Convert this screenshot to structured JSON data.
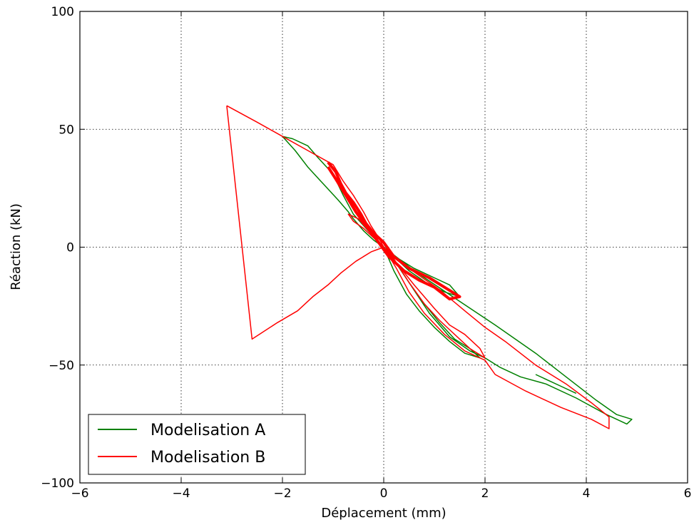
{
  "chart_data": {
    "type": "line",
    "xlabel": "Déplacement (mm)",
    "ylabel": "Réaction (kN)",
    "xlim": [
      -6,
      6
    ],
    "ylim": [
      -100,
      100
    ],
    "x_ticks": [
      -6,
      -4,
      -2,
      0,
      2,
      4,
      6
    ],
    "x_tick_labels": [
      "−6",
      "−4",
      "−2",
      "0",
      "2",
      "4",
      "6"
    ],
    "y_ticks": [
      -100,
      -50,
      0,
      50,
      100
    ],
    "y_tick_labels": [
      "−100",
      "−50",
      "0",
      "50",
      "100"
    ],
    "grid": true,
    "legend_position": "lower-left",
    "series": [
      {
        "name": "Modelisation A",
        "color": "#008000",
        "segments": [
          [
            [
              0,
              0
            ],
            [
              -0.2,
              3
            ],
            [
              -0.4,
              7
            ],
            [
              -0.6,
              12
            ],
            [
              -0.7,
              15
            ],
            [
              -0.9,
              20
            ],
            [
              -1.2,
              27
            ],
            [
              -1.5,
              34
            ],
            [
              -1.75,
              41
            ],
            [
              -2.0,
              47
            ],
            [
              -1.8,
              46
            ],
            [
              -1.5,
              43
            ],
            [
              -1.3,
              38
            ],
            [
              -1.0,
              31
            ],
            [
              -0.8,
              22
            ],
            [
              -0.6,
              14
            ],
            [
              -0.35,
              8
            ],
            [
              -0.1,
              2
            ],
            [
              0,
              0
            ],
            [
              0.3,
              -5
            ],
            [
              0.6,
              -9
            ],
            [
              1.0,
              -13
            ],
            [
              1.3,
              -16
            ],
            [
              1.5,
              -21
            ],
            [
              1.2,
              -19
            ],
            [
              0.9,
              -16
            ],
            [
              0.5,
              -10
            ],
            [
              0.2,
              -4
            ],
            [
              0,
              0
            ],
            [
              0.25,
              -7
            ],
            [
              0.5,
              -15
            ],
            [
              0.8,
              -24
            ],
            [
              1.1,
              -32
            ],
            [
              1.4,
              -39
            ],
            [
              1.7,
              -43
            ],
            [
              1.9,
              -47
            ],
            [
              1.6,
              -45
            ],
            [
              1.3,
              -40
            ],
            [
              1.0,
              -34
            ],
            [
              0.7,
              -27
            ],
            [
              0.45,
              -20
            ],
            [
              0.2,
              -10
            ],
            [
              0,
              0
            ],
            [
              0.6,
              -10
            ],
            [
              1.5,
              -23
            ],
            [
              2.2,
              -33
            ],
            [
              3.0,
              -45
            ],
            [
              3.6,
              -55
            ],
            [
              4.2,
              -65
            ],
            [
              4.6,
              -71
            ],
            [
              4.9,
              -73
            ],
            [
              4.8,
              -75
            ],
            [
              4.4,
              -71
            ],
            [
              3.8,
              -64
            ],
            [
              3.2,
              -58
            ],
            [
              2.7,
              -55
            ],
            [
              2.3,
              -51
            ],
            [
              2.0,
              -47
            ],
            [
              1.7,
              -44
            ],
            [
              1.3,
              -38
            ],
            [
              0.9,
              -28
            ],
            [
              0.5,
              -15
            ],
            [
              0.2,
              -5
            ],
            [
              0,
              0
            ]
          ],
          [
            [
              3.0,
              -54
            ],
            [
              3.5,
              -59
            ],
            [
              3.8,
              -62
            ]
          ]
        ]
      },
      {
        "name": "Modelisation B",
        "color": "#ff0000",
        "segments": [
          [
            [
              -3.1,
              60
            ],
            [
              -2.5,
              53
            ],
            [
              -2.0,
              47
            ],
            [
              -1.5,
              41
            ],
            [
              -1.0,
              35
            ],
            [
              -0.8,
              28
            ],
            [
              -0.6,
              22
            ],
            [
              -0.4,
              15
            ],
            [
              -0.25,
              9
            ],
            [
              -0.1,
              4
            ],
            [
              0,
              0
            ],
            [
              -0.2,
              4
            ],
            [
              -0.4,
              8
            ],
            [
              -0.6,
              11
            ],
            [
              -0.7,
              14
            ],
            [
              -0.5,
              12
            ],
            [
              -0.3,
              7
            ],
            [
              0,
              0
            ],
            [
              0.3,
              -6
            ],
            [
              0.7,
              -12
            ],
            [
              1.1,
              -18
            ],
            [
              1.6,
              -27
            ],
            [
              2.0,
              -34
            ],
            [
              2.4,
              -40
            ],
            [
              3.0,
              -50
            ],
            [
              3.6,
              -58
            ],
            [
              4.1,
              -66
            ],
            [
              4.45,
              -72
            ],
            [
              4.45,
              -77
            ],
            [
              4.1,
              -73
            ],
            [
              3.5,
              -68
            ],
            [
              2.8,
              -61
            ],
            [
              2.2,
              -54
            ],
            [
              2.0,
              -48
            ],
            [
              1.6,
              -44
            ],
            [
              1.2,
              -37
            ],
            [
              0.8,
              -28
            ],
            [
              0.5,
              -19
            ],
            [
              0.25,
              -9
            ],
            [
              0,
              0
            ],
            [
              0.3,
              -8
            ],
            [
              0.6,
              -16
            ],
            [
              1.0,
              -26
            ],
            [
              1.3,
              -33
            ],
            [
              1.6,
              -37
            ],
            [
              1.9,
              -43
            ],
            [
              2.0,
              -47
            ],
            [
              1.7,
              -43
            ],
            [
              1.4,
              -37
            ],
            [
              1.1,
              -31
            ],
            [
              0.8,
              -24
            ],
            [
              0.5,
              -15
            ],
            [
              0.2,
              -5
            ],
            [
              0,
              0
            ],
            [
              -0.25,
              -2
            ],
            [
              -0.55,
              -6
            ],
            [
              -0.85,
              -11
            ],
            [
              -1.1,
              -16
            ],
            [
              -1.4,
              -21
            ],
            [
              -1.7,
              -27
            ],
            [
              -2.1,
              -32
            ],
            [
              -2.6,
              -39
            ],
            [
              -3.1,
              60
            ]
          ]
        ],
        "dense_segment": [
          [
            -1.1,
            36
          ],
          [
            -0.95,
            32
          ],
          [
            -0.85,
            27
          ],
          [
            -0.75,
            23
          ],
          [
            -0.6,
            19
          ],
          [
            -0.45,
            14
          ],
          [
            -0.35,
            10
          ],
          [
            -0.2,
            6
          ],
          [
            0,
            2
          ],
          [
            0.2,
            -4
          ],
          [
            0.5,
            -9
          ],
          [
            0.9,
            -13
          ],
          [
            1.2,
            -17
          ],
          [
            1.5,
            -21
          ],
          [
            1.3,
            -22
          ],
          [
            1.0,
            -17
          ],
          [
            0.7,
            -14
          ],
          [
            0.4,
            -10
          ],
          [
            0.1,
            -4
          ],
          [
            -0.1,
            2
          ],
          [
            -0.35,
            9
          ],
          [
            -0.55,
            15
          ],
          [
            -0.75,
            22
          ],
          [
            -0.95,
            29
          ],
          [
            -1.1,
            34
          ]
        ]
      }
    ]
  }
}
